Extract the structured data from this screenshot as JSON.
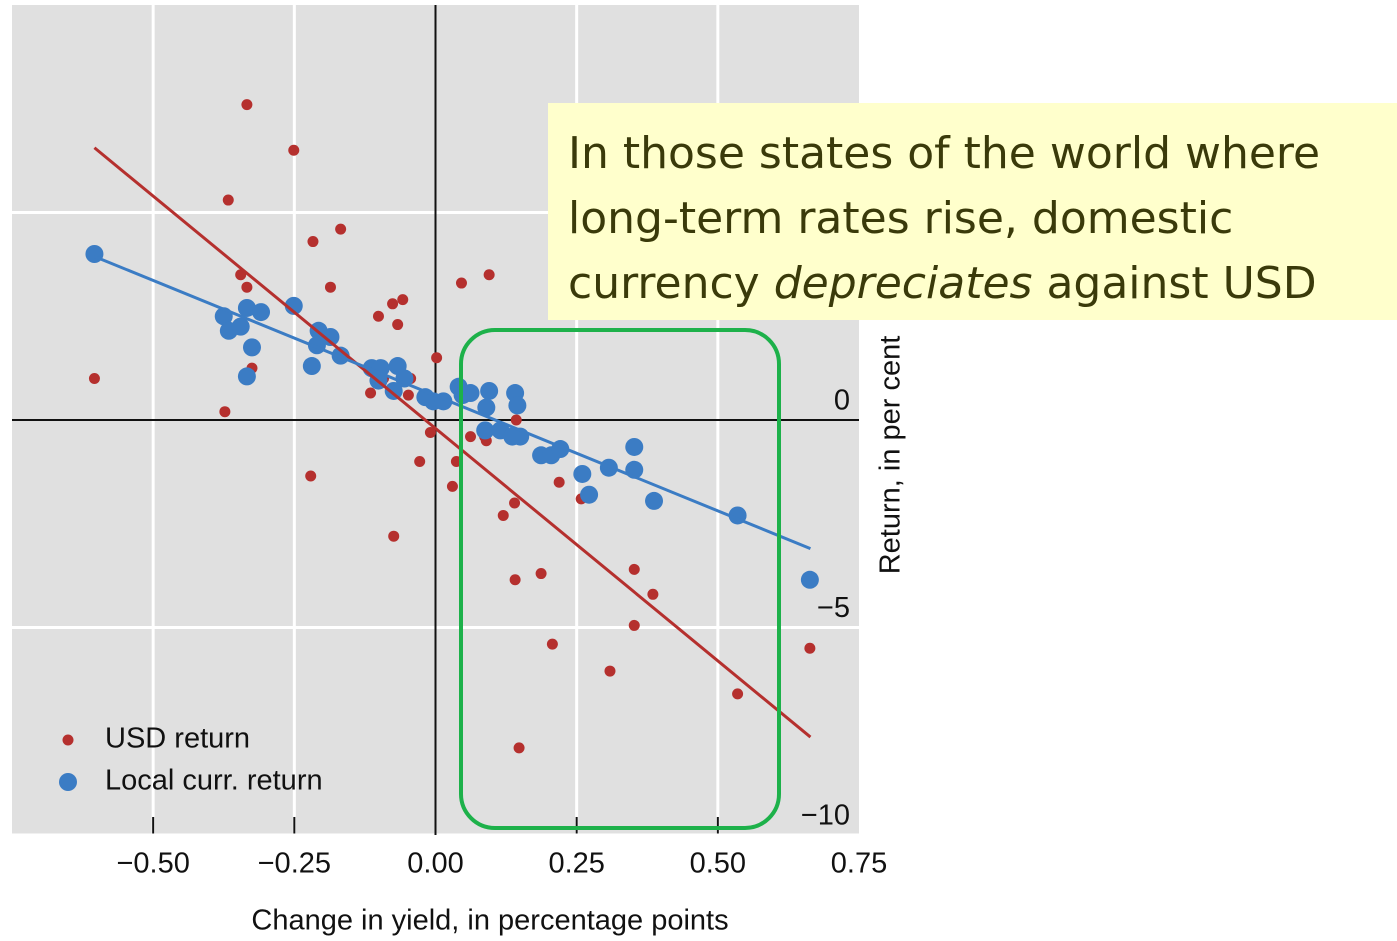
{
  "chart_data": {
    "type": "scatter",
    "xlabel": "Change in yield, in percentage points",
    "ylabel": "Return, in per cent",
    "xlim": [
      -0.75,
      0.75
    ],
    "ylim": [
      -10,
      10
    ],
    "xticks": [
      {
        "value": -0.5,
        "label": "−0.50"
      },
      {
        "value": -0.25,
        "label": "−0.25"
      },
      {
        "value": 0,
        "label": "0.00"
      },
      0.25,
      {
        "value": 0.5,
        "label": "0.50"
      },
      0.75
    ],
    "yticks": [
      {
        "value": -10,
        "label": "−10"
      },
      {
        "value": -5,
        "label": "−5"
      },
      0,
      5
    ],
    "grid": true,
    "legend": "lower left",
    "series": [
      {
        "name": "USD return",
        "color": "#b5302e",
        "x": [
          -0.334,
          -0.251,
          -0.367,
          -0.217,
          -0.168,
          -0.345,
          -0.334,
          -0.186,
          -0.306,
          -0.604,
          -0.373,
          -0.325,
          -0.207,
          -0.101,
          -0.076,
          -0.058,
          -0.067,
          0.046,
          0.095,
          0.002,
          -0.115,
          -0.092,
          -0.044,
          -0.048,
          -0.221,
          -0.074,
          -0.028,
          -0.009,
          0.037,
          0.03,
          0.062,
          0.09,
          0.087,
          0.143,
          0.12,
          0.14,
          0.141,
          0.187,
          0.219,
          0.258,
          0.207,
          0.309,
          0.352,
          0.385,
          0.352,
          0.535,
          0.663,
          0.148
        ],
        "values": [
          7.6,
          6.5,
          5.3,
          4.3,
          4.6,
          3.5,
          3.2,
          3.2,
          2.6,
          1.0,
          0.2,
          1.25,
          2.2,
          2.5,
          2.8,
          2.9,
          2.3,
          3.3,
          3.5,
          1.5,
          0.65,
          1.0,
          1.0,
          0.6,
          -1.35,
          -2.8,
          -1.0,
          -0.3,
          -1.0,
          -1.6,
          -0.4,
          -0.5,
          -0.4,
          0,
          -2.3,
          -2.0,
          -3.85,
          -3.7,
          -1.5,
          -1.9,
          -5.4,
          -6.05,
          -3.6,
          -4.2,
          -4.95,
          -6.6,
          -5.5,
          -7.9
        ],
        "fit": {
          "x": [
            -0.604,
            0.664
          ],
          "values": [
            6.56,
            -7.64
          ]
        }
      },
      {
        "name": "Local curr. return",
        "color": "#3b7cc4",
        "x": [
          -0.604,
          -0.375,
          -0.366,
          -0.345,
          -0.334,
          -0.309,
          -0.325,
          -0.334,
          -0.251,
          -0.207,
          -0.186,
          -0.21,
          -0.219,
          -0.168,
          -0.113,
          -0.097,
          -0.101,
          -0.067,
          -0.055,
          -0.074,
          -0.018,
          -0.004,
          0.014,
          0.041,
          0.048,
          0.062,
          0.095,
          0.09,
          0.141,
          0.145,
          0.088,
          0.115,
          0.136,
          0.15,
          0.187,
          0.205,
          0.221,
          0.26,
          0.272,
          0.307,
          0.352,
          0.352,
          0.387,
          0.535,
          0.663
        ],
        "values": [
          4.0,
          2.5,
          2.15,
          2.25,
          2.7,
          2.6,
          1.75,
          1.05,
          2.75,
          2.15,
          2.0,
          1.8,
          1.3,
          1.55,
          1.25,
          1.25,
          0.95,
          1.3,
          1.0,
          0.7,
          0.55,
          0.45,
          0.45,
          0.8,
          0.6,
          0.65,
          0.7,
          0.3,
          0.65,
          0.35,
          -0.25,
          -0.25,
          -0.4,
          -0.4,
          -0.85,
          -0.85,
          -0.7,
          -1.3,
          -1.8,
          -1.15,
          -0.65,
          -1.2,
          -1.95,
          -2.3,
          -3.85
        ],
        "fit": {
          "x": [
            -0.604,
            0.664
          ],
          "values": [
            3.94,
            -3.1
          ]
        }
      }
    ],
    "annotation": [
      "In those states of the world where",
      "long-term rates rise, domestic",
      [
        "currency",
        "depreciates",
        "against USD"
      ]
    ]
  }
}
